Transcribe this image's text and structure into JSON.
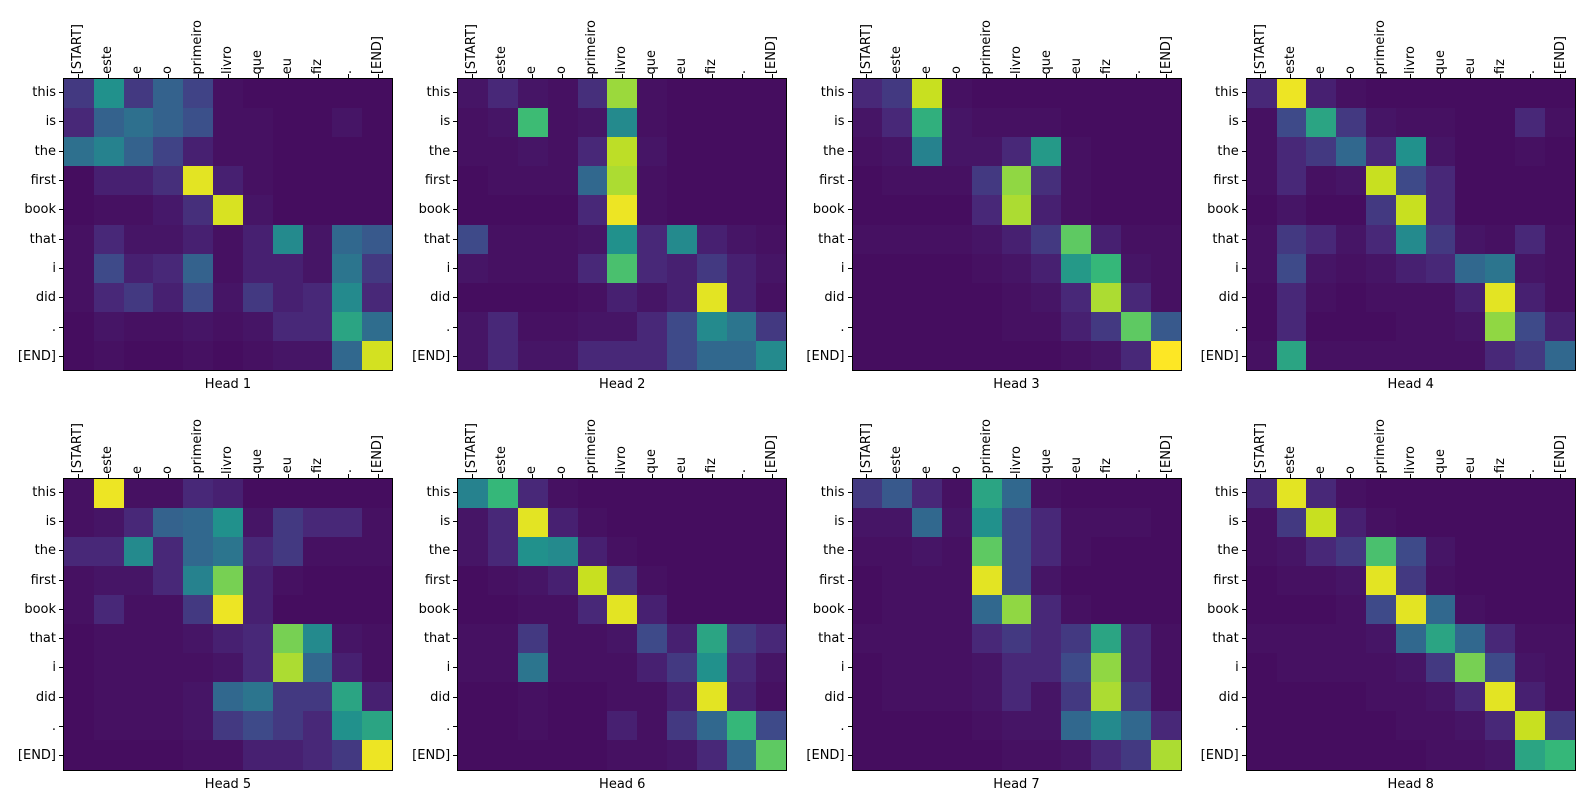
{
  "figure": {
    "background_color": "#ffffff",
    "text_color": "#000000",
    "layout": {
      "rows": 2,
      "cols": 4
    }
  },
  "chart_data": {
    "type": "heatmap",
    "description": "Attention weight matrices for 8 attention heads (English target tokens vs Portuguese source tokens)",
    "x_labels": [
      "[START]",
      "este",
      "e",
      "o",
      "primeiro",
      "livro",
      "que",
      "eu",
      "fiz",
      ".",
      "[END]"
    ],
    "y_labels": [
      "this",
      "is",
      "the",
      "first",
      "book",
      "that",
      "i",
      "did",
      ".",
      "[END]"
    ],
    "colormap": "viridis",
    "colormap_stops": [
      "#440154",
      "#482878",
      "#3e4a89",
      "#31688e",
      "#26828e",
      "#21918c",
      "#35b779",
      "#5ec962",
      "#90d743",
      "#c8e020",
      "#fde725"
    ],
    "value_range": [
      0,
      1
    ],
    "grid": false,
    "legend": "none",
    "subplots": [
      {
        "title": "Head 1",
        "values": [
          [
            0.15,
            0.5,
            0.15,
            0.28,
            0.18,
            0.04,
            0.03,
            0.03,
            0.03,
            0.03,
            0.03
          ],
          [
            0.1,
            0.28,
            0.33,
            0.28,
            0.22,
            0.04,
            0.04,
            0.03,
            0.03,
            0.05,
            0.03
          ],
          [
            0.33,
            0.4,
            0.28,
            0.18,
            0.08,
            0.04,
            0.04,
            0.03,
            0.03,
            0.03,
            0.03
          ],
          [
            0.03,
            0.08,
            0.08,
            0.12,
            0.95,
            0.08,
            0.04,
            0.03,
            0.03,
            0.03,
            0.03
          ],
          [
            0.03,
            0.04,
            0.04,
            0.06,
            0.12,
            0.93,
            0.05,
            0.03,
            0.03,
            0.03,
            0.03
          ],
          [
            0.04,
            0.1,
            0.05,
            0.05,
            0.08,
            0.04,
            0.08,
            0.45,
            0.05,
            0.3,
            0.25
          ],
          [
            0.04,
            0.2,
            0.08,
            0.1,
            0.28,
            0.04,
            0.08,
            0.08,
            0.05,
            0.35,
            0.15
          ],
          [
            0.04,
            0.1,
            0.15,
            0.08,
            0.2,
            0.05,
            0.15,
            0.08,
            0.1,
            0.45,
            0.1
          ],
          [
            0.03,
            0.05,
            0.04,
            0.04,
            0.05,
            0.04,
            0.05,
            0.1,
            0.1,
            0.55,
            0.32
          ],
          [
            0.03,
            0.04,
            0.03,
            0.03,
            0.04,
            0.03,
            0.04,
            0.05,
            0.05,
            0.3,
            0.92
          ]
        ]
      },
      {
        "title": "Head 2",
        "values": [
          [
            0.05,
            0.1,
            0.05,
            0.04,
            0.12,
            0.82,
            0.04,
            0.03,
            0.03,
            0.03,
            0.03
          ],
          [
            0.04,
            0.05,
            0.62,
            0.04,
            0.05,
            0.45,
            0.04,
            0.03,
            0.03,
            0.03,
            0.03
          ],
          [
            0.04,
            0.04,
            0.05,
            0.04,
            0.1,
            0.88,
            0.05,
            0.03,
            0.03,
            0.03,
            0.03
          ],
          [
            0.03,
            0.04,
            0.04,
            0.04,
            0.3,
            0.85,
            0.04,
            0.03,
            0.03,
            0.03,
            0.03
          ],
          [
            0.03,
            0.03,
            0.03,
            0.03,
            0.1,
            0.97,
            0.04,
            0.03,
            0.03,
            0.03,
            0.03
          ],
          [
            0.2,
            0.04,
            0.04,
            0.04,
            0.05,
            0.5,
            0.1,
            0.45,
            0.08,
            0.05,
            0.04
          ],
          [
            0.05,
            0.04,
            0.04,
            0.04,
            0.1,
            0.65,
            0.1,
            0.08,
            0.15,
            0.08,
            0.05
          ],
          [
            0.03,
            0.03,
            0.03,
            0.03,
            0.04,
            0.08,
            0.05,
            0.08,
            0.95,
            0.08,
            0.04
          ],
          [
            0.05,
            0.1,
            0.04,
            0.04,
            0.05,
            0.05,
            0.1,
            0.2,
            0.45,
            0.35,
            0.15
          ],
          [
            0.05,
            0.1,
            0.05,
            0.05,
            0.1,
            0.1,
            0.1,
            0.2,
            0.3,
            0.3,
            0.45
          ]
        ]
      },
      {
        "title": "Head 3",
        "values": [
          [
            0.1,
            0.15,
            0.9,
            0.04,
            0.03,
            0.03,
            0.03,
            0.03,
            0.03,
            0.03,
            0.03
          ],
          [
            0.05,
            0.1,
            0.58,
            0.05,
            0.04,
            0.04,
            0.04,
            0.03,
            0.03,
            0.03,
            0.03
          ],
          [
            0.04,
            0.05,
            0.4,
            0.05,
            0.05,
            0.1,
            0.52,
            0.04,
            0.03,
            0.03,
            0.03
          ],
          [
            0.03,
            0.04,
            0.04,
            0.04,
            0.15,
            0.8,
            0.12,
            0.04,
            0.03,
            0.03,
            0.03
          ],
          [
            0.03,
            0.03,
            0.03,
            0.03,
            0.1,
            0.85,
            0.08,
            0.04,
            0.03,
            0.03,
            0.03
          ],
          [
            0.04,
            0.04,
            0.04,
            0.04,
            0.05,
            0.08,
            0.15,
            0.7,
            0.08,
            0.04,
            0.04
          ],
          [
            0.03,
            0.03,
            0.03,
            0.03,
            0.04,
            0.05,
            0.08,
            0.52,
            0.6,
            0.05,
            0.04
          ],
          [
            0.03,
            0.03,
            0.03,
            0.03,
            0.03,
            0.04,
            0.05,
            0.1,
            0.85,
            0.1,
            0.04
          ],
          [
            0.03,
            0.03,
            0.03,
            0.03,
            0.03,
            0.04,
            0.04,
            0.08,
            0.15,
            0.7,
            0.25
          ],
          [
            0.03,
            0.03,
            0.03,
            0.03,
            0.03,
            0.03,
            0.03,
            0.04,
            0.05,
            0.1,
            1.0
          ]
        ]
      },
      {
        "title": "Head 4",
        "values": [
          [
            0.1,
            0.97,
            0.08,
            0.04,
            0.03,
            0.03,
            0.03,
            0.03,
            0.03,
            0.03,
            0.03
          ],
          [
            0.04,
            0.2,
            0.55,
            0.15,
            0.05,
            0.04,
            0.04,
            0.03,
            0.03,
            0.1,
            0.04
          ],
          [
            0.04,
            0.1,
            0.15,
            0.3,
            0.1,
            0.5,
            0.05,
            0.03,
            0.03,
            0.04,
            0.03
          ],
          [
            0.04,
            0.1,
            0.04,
            0.05,
            0.9,
            0.2,
            0.1,
            0.03,
            0.03,
            0.03,
            0.03
          ],
          [
            0.03,
            0.05,
            0.03,
            0.03,
            0.15,
            0.9,
            0.1,
            0.03,
            0.03,
            0.03,
            0.03
          ],
          [
            0.04,
            0.15,
            0.1,
            0.05,
            0.1,
            0.45,
            0.15,
            0.05,
            0.04,
            0.1,
            0.04
          ],
          [
            0.04,
            0.2,
            0.05,
            0.04,
            0.05,
            0.08,
            0.1,
            0.3,
            0.35,
            0.05,
            0.04
          ],
          [
            0.03,
            0.1,
            0.04,
            0.03,
            0.04,
            0.04,
            0.04,
            0.08,
            0.95,
            0.08,
            0.04
          ],
          [
            0.03,
            0.1,
            0.03,
            0.03,
            0.03,
            0.04,
            0.04,
            0.05,
            0.8,
            0.2,
            0.08
          ],
          [
            0.04,
            0.55,
            0.04,
            0.04,
            0.04,
            0.04,
            0.04,
            0.04,
            0.1,
            0.15,
            0.3
          ]
        ]
      },
      {
        "title": "Head 5",
        "values": [
          [
            0.04,
            0.97,
            0.04,
            0.04,
            0.1,
            0.08,
            0.03,
            0.03,
            0.03,
            0.03,
            0.03
          ],
          [
            0.04,
            0.05,
            0.1,
            0.28,
            0.3,
            0.5,
            0.05,
            0.15,
            0.1,
            0.1,
            0.04
          ],
          [
            0.1,
            0.1,
            0.45,
            0.1,
            0.3,
            0.35,
            0.1,
            0.15,
            0.04,
            0.04,
            0.04
          ],
          [
            0.04,
            0.05,
            0.05,
            0.1,
            0.4,
            0.75,
            0.08,
            0.04,
            0.03,
            0.03,
            0.03
          ],
          [
            0.04,
            0.1,
            0.04,
            0.04,
            0.15,
            0.97,
            0.08,
            0.03,
            0.03,
            0.03,
            0.03
          ],
          [
            0.03,
            0.04,
            0.04,
            0.04,
            0.05,
            0.08,
            0.1,
            0.75,
            0.45,
            0.05,
            0.04
          ],
          [
            0.03,
            0.04,
            0.04,
            0.04,
            0.04,
            0.05,
            0.1,
            0.85,
            0.3,
            0.08,
            0.04
          ],
          [
            0.03,
            0.04,
            0.04,
            0.04,
            0.05,
            0.3,
            0.35,
            0.15,
            0.15,
            0.55,
            0.08
          ],
          [
            0.03,
            0.04,
            0.04,
            0.04,
            0.05,
            0.15,
            0.2,
            0.15,
            0.1,
            0.5,
            0.55
          ],
          [
            0.03,
            0.03,
            0.03,
            0.03,
            0.04,
            0.04,
            0.08,
            0.08,
            0.1,
            0.15,
            0.97
          ]
        ]
      },
      {
        "title": "Head 6",
        "values": [
          [
            0.4,
            0.6,
            0.1,
            0.04,
            0.03,
            0.03,
            0.03,
            0.03,
            0.03,
            0.03,
            0.03
          ],
          [
            0.05,
            0.1,
            0.95,
            0.08,
            0.04,
            0.03,
            0.03,
            0.03,
            0.03,
            0.03,
            0.03
          ],
          [
            0.05,
            0.1,
            0.5,
            0.45,
            0.08,
            0.04,
            0.03,
            0.03,
            0.03,
            0.03,
            0.03
          ],
          [
            0.03,
            0.04,
            0.05,
            0.08,
            0.9,
            0.12,
            0.04,
            0.03,
            0.03,
            0.03,
            0.03
          ],
          [
            0.03,
            0.03,
            0.04,
            0.04,
            0.1,
            0.95,
            0.08,
            0.03,
            0.03,
            0.03,
            0.03
          ],
          [
            0.04,
            0.04,
            0.15,
            0.04,
            0.04,
            0.05,
            0.2,
            0.08,
            0.55,
            0.15,
            0.1
          ],
          [
            0.04,
            0.04,
            0.35,
            0.04,
            0.04,
            0.04,
            0.08,
            0.15,
            0.5,
            0.1,
            0.05
          ],
          [
            0.03,
            0.03,
            0.04,
            0.03,
            0.03,
            0.04,
            0.04,
            0.08,
            0.95,
            0.08,
            0.04
          ],
          [
            0.03,
            0.03,
            0.04,
            0.03,
            0.03,
            0.08,
            0.04,
            0.15,
            0.3,
            0.6,
            0.2
          ],
          [
            0.03,
            0.03,
            0.03,
            0.03,
            0.03,
            0.04,
            0.04,
            0.05,
            0.1,
            0.3,
            0.7
          ]
        ]
      },
      {
        "title": "Head 7",
        "values": [
          [
            0.15,
            0.25,
            0.1,
            0.04,
            0.55,
            0.3,
            0.04,
            0.03,
            0.03,
            0.03,
            0.03
          ],
          [
            0.05,
            0.05,
            0.3,
            0.05,
            0.5,
            0.2,
            0.1,
            0.04,
            0.04,
            0.04,
            0.03
          ],
          [
            0.04,
            0.04,
            0.05,
            0.04,
            0.7,
            0.2,
            0.1,
            0.04,
            0.03,
            0.03,
            0.03
          ],
          [
            0.03,
            0.04,
            0.04,
            0.04,
            0.95,
            0.2,
            0.05,
            0.03,
            0.03,
            0.03,
            0.03
          ],
          [
            0.03,
            0.04,
            0.04,
            0.04,
            0.3,
            0.8,
            0.1,
            0.04,
            0.03,
            0.03,
            0.03
          ],
          [
            0.04,
            0.04,
            0.04,
            0.04,
            0.1,
            0.15,
            0.1,
            0.15,
            0.55,
            0.1,
            0.04
          ],
          [
            0.03,
            0.04,
            0.04,
            0.04,
            0.05,
            0.1,
            0.1,
            0.2,
            0.8,
            0.1,
            0.04
          ],
          [
            0.03,
            0.04,
            0.04,
            0.04,
            0.05,
            0.1,
            0.05,
            0.15,
            0.85,
            0.15,
            0.04
          ],
          [
            0.03,
            0.03,
            0.03,
            0.03,
            0.04,
            0.05,
            0.05,
            0.3,
            0.45,
            0.3,
            0.1
          ],
          [
            0.03,
            0.03,
            0.03,
            0.03,
            0.03,
            0.04,
            0.04,
            0.05,
            0.1,
            0.15,
            0.85
          ]
        ]
      },
      {
        "title": "Head 8",
        "values": [
          [
            0.1,
            0.95,
            0.1,
            0.04,
            0.03,
            0.03,
            0.03,
            0.03,
            0.03,
            0.03,
            0.03
          ],
          [
            0.04,
            0.15,
            0.9,
            0.08,
            0.04,
            0.03,
            0.03,
            0.03,
            0.03,
            0.03,
            0.03
          ],
          [
            0.04,
            0.05,
            0.1,
            0.15,
            0.65,
            0.2,
            0.05,
            0.03,
            0.03,
            0.03,
            0.03
          ],
          [
            0.03,
            0.04,
            0.04,
            0.05,
            0.95,
            0.15,
            0.04,
            0.03,
            0.03,
            0.03,
            0.03
          ],
          [
            0.03,
            0.03,
            0.03,
            0.04,
            0.2,
            0.95,
            0.3,
            0.04,
            0.03,
            0.03,
            0.03
          ],
          [
            0.04,
            0.04,
            0.04,
            0.04,
            0.05,
            0.3,
            0.55,
            0.3,
            0.1,
            0.04,
            0.04
          ],
          [
            0.03,
            0.04,
            0.04,
            0.04,
            0.04,
            0.05,
            0.15,
            0.75,
            0.2,
            0.05,
            0.04
          ],
          [
            0.03,
            0.03,
            0.03,
            0.03,
            0.04,
            0.04,
            0.05,
            0.1,
            0.95,
            0.08,
            0.04
          ],
          [
            0.03,
            0.03,
            0.03,
            0.03,
            0.03,
            0.04,
            0.04,
            0.05,
            0.1,
            0.9,
            0.15
          ],
          [
            0.03,
            0.03,
            0.03,
            0.03,
            0.03,
            0.03,
            0.04,
            0.04,
            0.05,
            0.55,
            0.6
          ]
        ]
      }
    ]
  }
}
